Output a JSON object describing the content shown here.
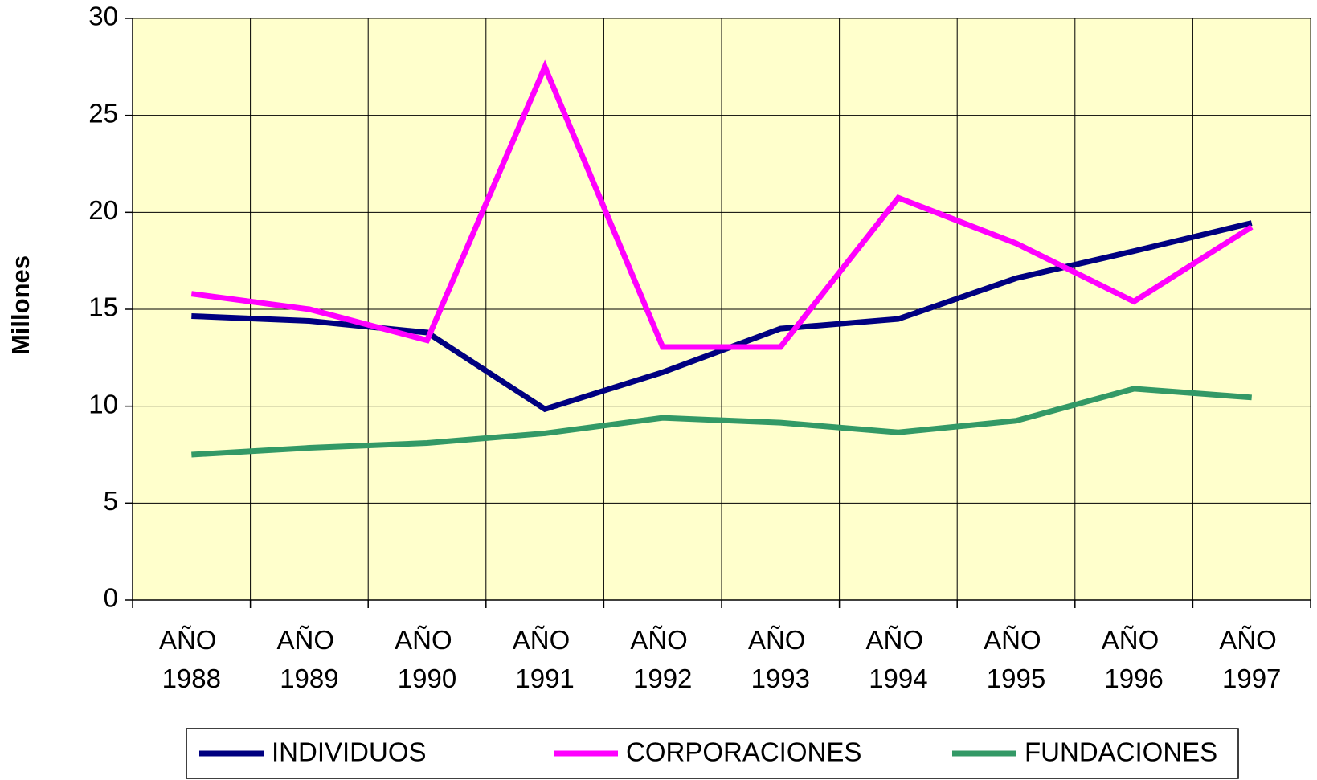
{
  "chart_data": {
    "type": "line",
    "y_label": "Millones",
    "categories": [
      "AÑO 1988",
      "AÑO 1989",
      "AÑO 1990",
      "AÑO 1991",
      "AÑO 1992",
      "AÑO 1993",
      "AÑO 1994",
      "AÑO 1995",
      "AÑO 1996",
      "AÑO 1997"
    ],
    "series": [
      {
        "name": "INDIVIDUOS",
        "color": "#000080",
        "values": [
          14.65,
          14.4,
          13.8,
          9.85,
          11.75,
          14.0,
          14.5,
          16.6,
          18.0,
          19.45
        ]
      },
      {
        "name": "CORPORACIONES",
        "color": "#ff00ff",
        "values": [
          15.8,
          15.0,
          13.4,
          27.5,
          13.05,
          13.05,
          20.75,
          18.4,
          15.4,
          19.25
        ]
      },
      {
        "name": "FUNDACIONES",
        "color": "#339966",
        "values": [
          7.5,
          7.85,
          8.1,
          8.6,
          9.4,
          9.15,
          8.65,
          9.25,
          10.9,
          10.45
        ]
      }
    ],
    "ylim": [
      0,
      30
    ],
    "yticks": [
      0,
      5,
      10,
      15,
      20,
      25,
      30
    ],
    "grid": true,
    "legend": "bottom",
    "plot_background": "#ffffcc"
  }
}
